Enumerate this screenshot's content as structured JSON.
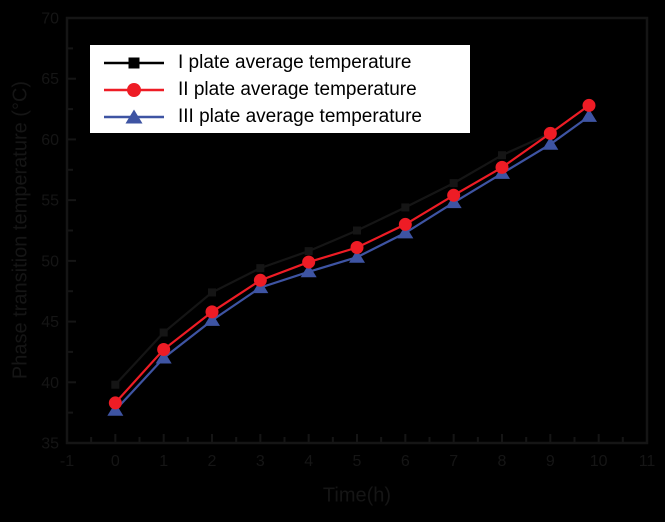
{
  "figure": {
    "background_color": "#000000",
    "ink_color": "#151515",
    "legend": {
      "entries": [
        {
          "label": "I plate average temperature",
          "marker": "square",
          "color": "#000000"
        },
        {
          "label": "II plate average temperature",
          "marker": "circle",
          "color": "#ee1c25"
        },
        {
          "label": "III plate average temperature",
          "marker": "triangle",
          "color": "#3e54a3"
        }
      ]
    }
  },
  "chart_data": {
    "type": "line",
    "title": "",
    "xlabel": "Time(h)",
    "ylabel": "Phase transition temperature (°C)",
    "xlim": [
      -1,
      11
    ],
    "ylim": [
      35,
      70
    ],
    "x_major_ticks": [
      -1,
      0,
      1,
      2,
      3,
      4,
      5,
      6,
      7,
      8,
      9,
      10,
      11
    ],
    "y_major_ticks": [
      35,
      40,
      45,
      50,
      55,
      60,
      65,
      70
    ],
    "minor_tick_step_x": 0.5,
    "minor_tick_step_y": 2.5,
    "grid": false,
    "legend_position": "upper-left",
    "x": [
      0,
      1,
      2,
      3,
      4,
      5,
      6,
      7,
      8,
      9,
      9.8
    ],
    "series": [
      {
        "name": "I plate average temperature",
        "marker": "square",
        "color": "#000000",
        "values": [
          39.8,
          44.1,
          47.4,
          49.4,
          50.8,
          52.5,
          54.4,
          56.4,
          58.7,
          60.5,
          62.8
        ]
      },
      {
        "name": "II plate average temperature",
        "marker": "circle",
        "color": "#ee1c25",
        "values": [
          38.3,
          42.7,
          45.8,
          48.4,
          49.9,
          51.1,
          53.0,
          55.4,
          57.7,
          60.5,
          62.8
        ]
      },
      {
        "name": "III plate average temperature",
        "marker": "triangle",
        "color": "#3e54a3",
        "values": [
          37.7,
          42.0,
          45.1,
          47.8,
          49.1,
          50.3,
          52.3,
          54.8,
          57.2,
          59.6,
          61.9
        ]
      }
    ]
  }
}
